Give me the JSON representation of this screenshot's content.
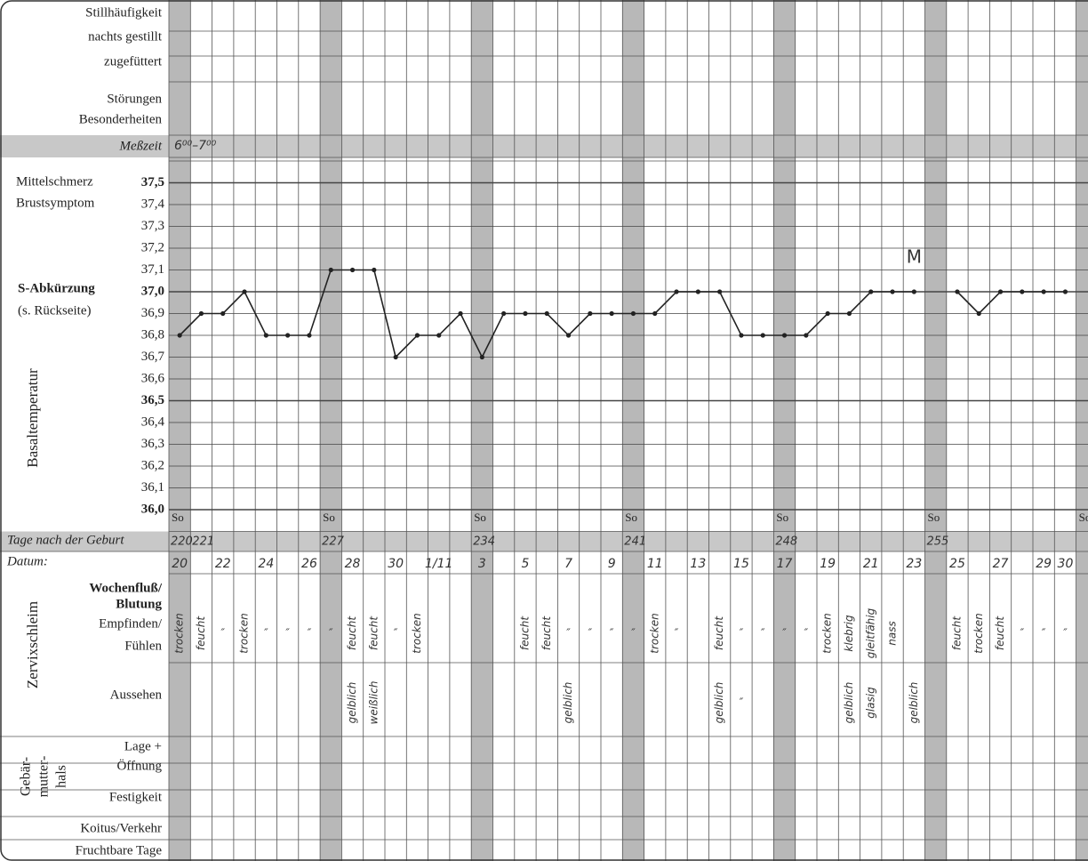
{
  "form": {
    "nursing": [
      "Stillhäufigkeit",
      "nachts gestillt",
      "zugefüttert"
    ],
    "disturbances": [
      "Störungen",
      "Besonderheiten"
    ],
    "measure_time_label": "Meßzeit",
    "measure_time": "6⁰⁰–7⁰⁰",
    "symptoms": [
      "Mittelschmerz",
      "Brustsymptom"
    ],
    "abbrev": [
      "S-Abkürzung",
      "(s. Rückseite)"
    ],
    "temp_axis_label": "Basaltemperatur",
    "sunday": "So",
    "days_after_birth_label": "Tage nach der Geburt",
    "date_label": "Datum:",
    "flow_label": [
      "Wochenfluß/",
      "Blutung"
    ],
    "mucus_label": "Zervixschleim",
    "sensation_label": [
      "Empfinden/",
      "Fühlen"
    ],
    "appearance_label": "Aussehen",
    "cervix_label": [
      "Gebär-",
      "mutter-",
      "hals"
    ],
    "cervix_rows": [
      "Lage +",
      "Öffnung",
      "Festigkeit"
    ],
    "intercourse": "Koitus/Verkehr",
    "fertile": "Fruchtbare Tage",
    "days_after_birth": [
      "220",
      "221",
      null,
      null,
      null,
      null,
      null,
      "227",
      null,
      null,
      null,
      null,
      null,
      null,
      "234",
      null,
      null,
      null,
      null,
      null,
      null,
      "241",
      null,
      null,
      null,
      null,
      null,
      null,
      "248",
      null,
      null,
      null,
      null,
      null,
      null,
      "255",
      null,
      null,
      null,
      null,
      null,
      null
    ],
    "sensation": [
      "trocken",
      "feucht",
      "″",
      "trocken",
      "″",
      "″",
      "″",
      "″",
      "feucht",
      "feucht",
      "″",
      "trocken",
      null,
      null,
      null,
      null,
      "feucht",
      "feucht",
      "″",
      "″",
      "″",
      "″",
      "trocken",
      "″",
      null,
      "feucht",
      "″",
      "″",
      "″",
      "″",
      "trocken",
      "klebrig",
      "gleitfähig",
      "nass",
      null,
      null,
      "feucht",
      "trocken",
      "feucht",
      "″",
      "″",
      "″"
    ],
    "appearance": [
      null,
      null,
      null,
      null,
      null,
      null,
      null,
      null,
      "gelblich",
      "weißlich",
      null,
      null,
      null,
      null,
      null,
      null,
      null,
      null,
      "gelblich",
      null,
      null,
      null,
      null,
      null,
      null,
      "gelblich",
      "″",
      null,
      null,
      null,
      null,
      "gelblich",
      "glasig",
      null,
      "gelblich",
      null,
      null,
      null,
      null,
      null,
      null,
      null
    ]
  },
  "chart_data": {
    "type": "line",
    "categories": [
      "20",
      null,
      "22",
      null,
      "24",
      null,
      "26",
      null,
      "28",
      null,
      "30",
      null,
      "1/11",
      null,
      "3",
      null,
      "5",
      null,
      "7",
      null,
      "9",
      null,
      "11",
      null,
      "13",
      null,
      "15",
      null,
      "17",
      null,
      "19",
      null,
      "21",
      null,
      "23",
      null,
      "25",
      null,
      "27",
      null,
      "29",
      "30"
    ],
    "series": [
      {
        "color": "#222",
        "values": [
          36.8,
          36.9,
          36.9,
          37.0,
          36.8,
          36.8,
          36.8,
          37.1,
          37.1,
          37.1,
          36.7,
          36.8,
          36.8,
          36.9,
          36.7,
          36.9,
          36.9,
          36.9,
          36.8,
          36.9,
          36.9,
          36.9,
          36.9,
          37.0,
          37.0,
          37.0,
          36.8,
          36.8,
          36.8,
          36.8,
          36.9,
          36.9,
          37.0,
          37.0,
          37.0,
          null,
          37.0,
          36.9,
          37.0,
          37.0,
          37.0,
          37.0
        ]
      }
    ],
    "ylim": [
      35.9,
      37.6
    ],
    "yticks": [
      {
        "value": 37.5,
        "label": "37,5"
      },
      {
        "value": 37.4,
        "label": "37,4"
      },
      {
        "value": 37.3,
        "label": "37,3"
      },
      {
        "value": 37.2,
        "label": "37,2"
      },
      {
        "value": 37.1,
        "label": "37,1"
      },
      {
        "value": 37.0,
        "label": "37,0"
      },
      {
        "value": 36.9,
        "label": "36,9"
      },
      {
        "value": 36.8,
        "label": "36,8"
      },
      {
        "value": 36.7,
        "label": "36,7"
      },
      {
        "value": 36.6,
        "label": "36,6"
      },
      {
        "value": 36.5,
        "label": "36,5"
      },
      {
        "value": 36.4,
        "label": "36,4"
      },
      {
        "value": 36.3,
        "label": "36,3"
      },
      {
        "value": 36.2,
        "label": "36,2"
      },
      {
        "value": 36.1,
        "label": "36,1"
      },
      {
        "value": 36.0,
        "label": "36,0"
      }
    ],
    "annotations": [
      {
        "text": "M",
        "x": "23"
      }
    ]
  }
}
